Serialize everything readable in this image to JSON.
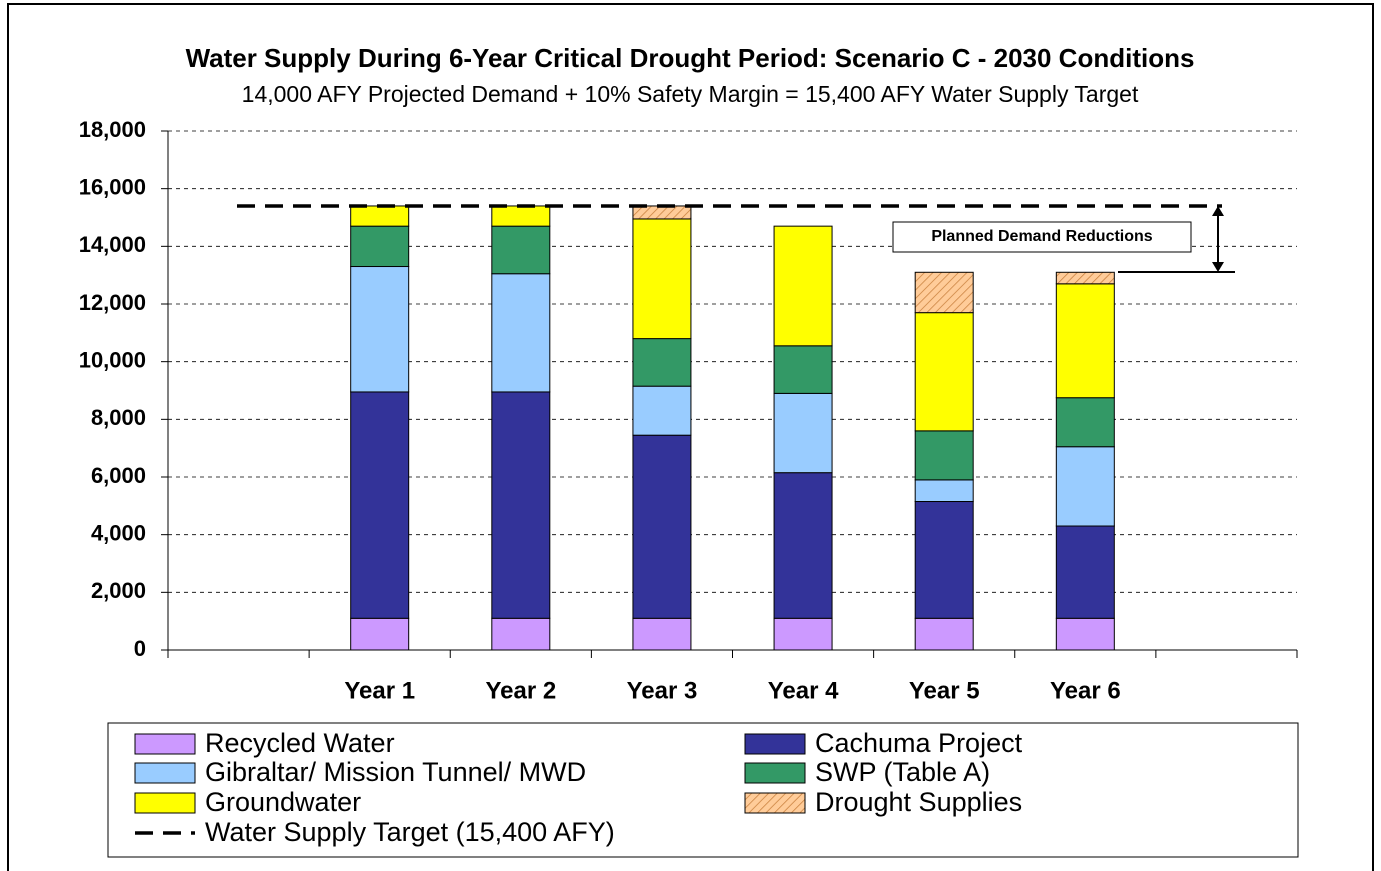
{
  "chart_data": {
    "type": "stacked_bar",
    "title": "Water Supply During 6-Year Critical Drought Period:  Scenario C - 2030 Conditions",
    "subtitle": "14,000 AFY Projected Demand + 10% Safety Margin = 15,400 AFY Water Supply Target",
    "categories": [
      null,
      "Year 1",
      "Year 2",
      "Year 3",
      "Year 4",
      "Year 5",
      "Year 6",
      null
    ],
    "series": [
      {
        "name": "Recycled Water",
        "color": "#cc99ff",
        "values": [
          null,
          1100,
          1100,
          1100,
          1100,
          1100,
          1100,
          null
        ]
      },
      {
        "name": "Cachuma Project",
        "color": "#333399",
        "values": [
          null,
          7850,
          7850,
          6350,
          5050,
          4050,
          3200,
          null
        ]
      },
      {
        "name": "Gibraltar/ Mission Tunnel/ MWD",
        "color": "#99ccff",
        "values": [
          null,
          4350,
          4100,
          1700,
          2750,
          750,
          2750,
          null
        ]
      },
      {
        "name": "SWP (Table A)",
        "color": "#339966",
        "values": [
          null,
          1400,
          1650,
          1650,
          1650,
          1700,
          1700,
          null
        ]
      },
      {
        "name": "Groundwater",
        "color": "#ffff00",
        "values": [
          null,
          700,
          700,
          4150,
          4150,
          4100,
          3950,
          null
        ]
      },
      {
        "name": "Drought Supplies",
        "color": "#ffcc99",
        "pattern": "hatch",
        "values": [
          null,
          0,
          0,
          450,
          0,
          1400,
          400,
          null
        ]
      }
    ],
    "target": {
      "name": "Water Supply Target (15,400 AFY)",
      "value": 15400,
      "color": "#000000"
    },
    "annotation": "Planned Demand Reductions",
    "ylim": [
      0,
      18000
    ],
    "yticks": [
      0,
      {
        "value": 2000,
        "label": "2,000"
      },
      {
        "value": 4000,
        "label": "4,000"
      },
      {
        "value": 6000,
        "label": "6,000"
      },
      {
        "value": 8000,
        "label": "8,000"
      },
      {
        "value": 10000,
        "label": "10,000"
      },
      {
        "value": 12000,
        "label": "12,000"
      },
      {
        "value": 14000,
        "label": "14,000"
      },
      {
        "value": 16000,
        "label": "16,000"
      },
      {
        "value": 18000,
        "label": "18,000"
      }
    ],
    "grid": true
  }
}
